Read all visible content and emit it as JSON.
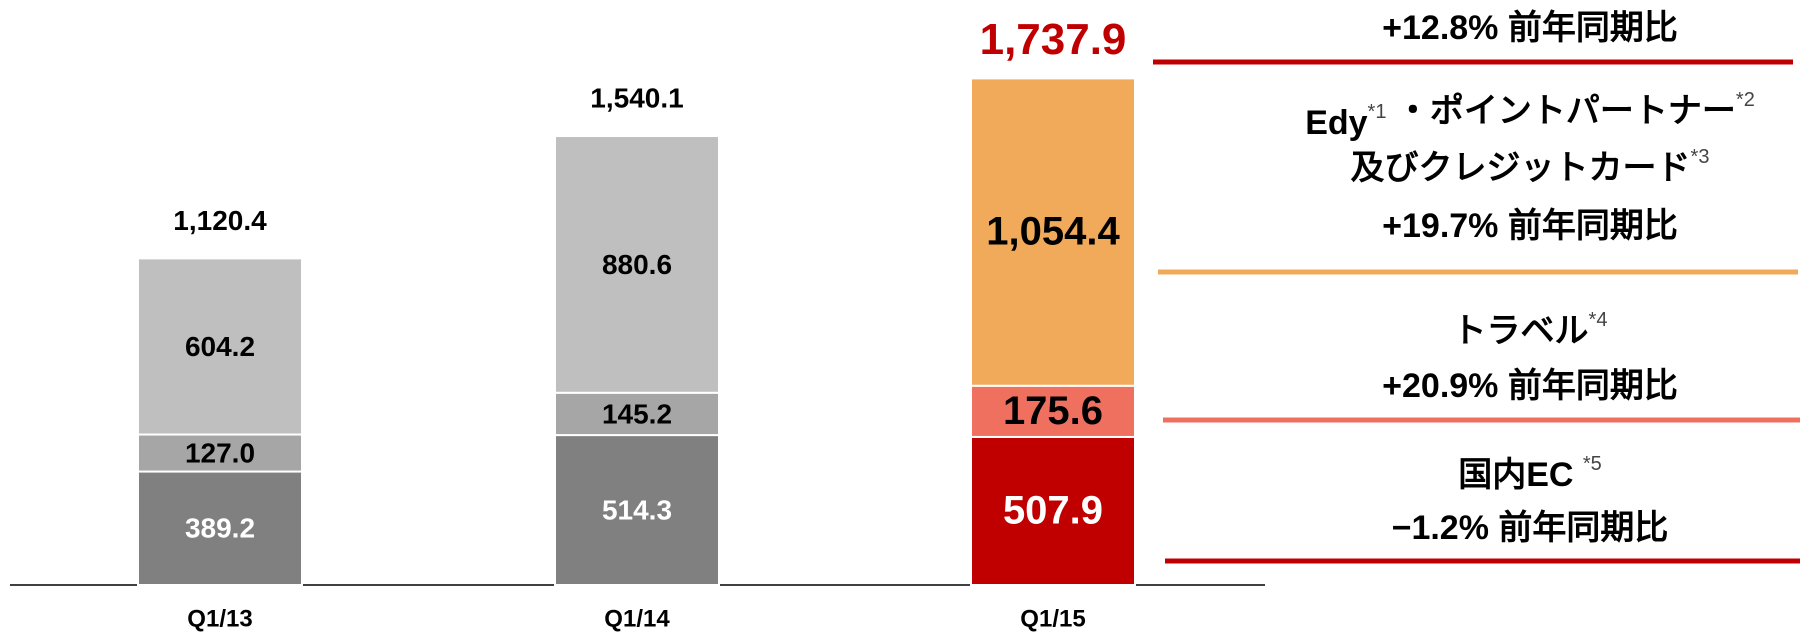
{
  "chart_data": {
    "type": "stacked_bar",
    "categories": [
      "Q1/13",
      "Q1/14",
      "Q1/15"
    ],
    "ylim": [
      0,
      2000
    ],
    "series": [
      {
        "colors": [
          "#808080",
          "#808080",
          "#c00000"
        ],
        "label_color": "#ffffff",
        "values": [
          389.2,
          514.3,
          507.9
        ]
      },
      {
        "colors": [
          "#a6a6a6",
          "#a6a6a6",
          "#f07060"
        ],
        "label_color": "#000000",
        "values": [
          127.0,
          145.2,
          175.6
        ],
        "value_labels": [
          "127.0",
          "145.2",
          "175.6"
        ]
      },
      {
        "colors": [
          "#bfbfbf",
          "#bfbfbf",
          "#f0aa5a"
        ],
        "label_color": "#000000",
        "values": [
          604.2,
          880.6,
          1054.4
        ],
        "value_labels": [
          "604.2",
          "880.6",
          "1,054.4"
        ]
      }
    ],
    "totals": {
      "values": [
        1120.4,
        1540.1,
        1737.9
      ],
      "value_labels": [
        "1,120.4",
        "1,540.1",
        "1,737.9"
      ],
      "colors": [
        "#000000",
        "#000000",
        "#c00000"
      ]
    },
    "annotations": [
      {
        "color": "#c00000",
        "lines": [
          [
            {
              "text": "+12.8% 前年同期比"
            }
          ]
        ]
      },
      {
        "color": "#f0aa5a",
        "lines": [
          [
            {
              "text": "Edy",
              "sup": "*1"
            },
            {
              "text": " ・ポイントパートナー",
              "sup": "*2"
            }
          ],
          [
            {
              "text": "及びクレジットカード",
              "sup": "*3"
            }
          ],
          [
            {
              "text": "+19.7% 前年同期比"
            }
          ]
        ]
      },
      {
        "color": "#f07060",
        "lines": [
          [
            {
              "text": "トラベル",
              "sup": "*4"
            }
          ],
          [
            {
              "text": "+20.9% 前年同期比"
            }
          ]
        ]
      },
      {
        "color": "#c00000",
        "lines": [
          [
            {
              "text": "国内EC ",
              "sup": "*5"
            }
          ],
          [
            {
              "text": "−1.2% 前年同期比"
            }
          ]
        ]
      }
    ]
  }
}
